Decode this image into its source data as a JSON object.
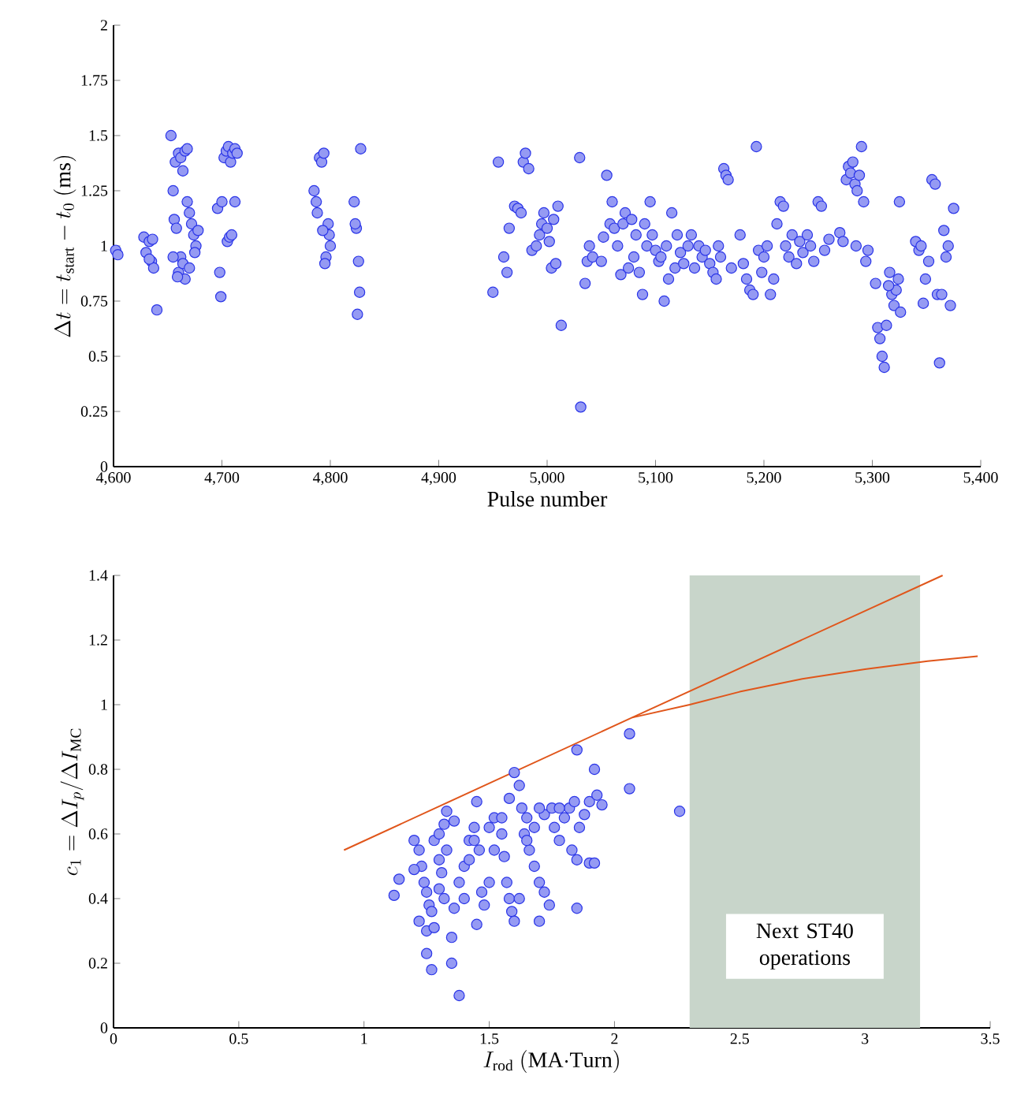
{
  "chart_data": [
    {
      "type": "scatter",
      "xlabel": "Pulse number",
      "ylabel": "\\Delta t = t_{\\mathrm{start}} - t_0\\ \\mathrm{(ms)}",
      "grid": false,
      "xlim": [
        4600,
        5400
      ],
      "xticks": [
        {
          "value": 4600,
          "label": "4,600"
        },
        {
          "value": 4700,
          "label": "4,700"
        },
        {
          "value": 4800,
          "label": "4,800"
        },
        {
          "value": 4900,
          "label": "4,900"
        },
        {
          "value": 5000,
          "label": "5,000"
        },
        {
          "value": 5100,
          "label": "5,100"
        },
        {
          "value": 5200,
          "label": "5,200"
        },
        {
          "value": 5300,
          "label": "5,300"
        },
        {
          "value": 5400,
          "label": "5,400"
        }
      ],
      "ylim": [
        0,
        2
      ],
      "yticks": [
        0,
        0.25,
        0.5,
        0.75,
        1,
        1.25,
        1.5,
        1.75,
        2
      ],
      "series": [
        {
          "marker": "circle",
          "color": "#2a35e8",
          "x": [
            4602,
            4604,
            4628,
            4630,
            4633,
            4635,
            4637,
            4640,
            4633,
            4636,
            4653,
            4655,
            4657,
            4660,
            4662,
            4664,
            4666,
            4668,
            4656,
            4658,
            4660,
            4662,
            4664,
            4666,
            4668,
            4670,
            4672,
            4674,
            4676,
            4678,
            4655,
            4659,
            4670,
            4675,
            4696,
            4698,
            4699,
            4700,
            4702,
            4704,
            4706,
            4708,
            4710,
            4712,
            4714,
            4705,
            4707,
            4712,
            4709,
            4785,
            4787,
            4788,
            4790,
            4792,
            4794,
            4796,
            4798,
            4799,
            4800,
            4795,
            4793,
            4822,
            4824,
            4826,
            4827,
            4825,
            4828,
            4823,
            4950,
            4955,
            4960,
            4963,
            4965,
            4970,
            4973,
            4976,
            4978,
            4980,
            4983,
            4986,
            4990,
            4993,
            4995,
            4997,
            5000,
            5002,
            5004,
            5006,
            5008,
            5010,
            5013,
            5030,
            5031,
            5035,
            5037,
            5039,
            5042,
            5050,
            5052,
            5055,
            5058,
            5060,
            5062,
            5065,
            5068,
            5070,
            5072,
            5075,
            5078,
            5080,
            5082,
            5085,
            5088,
            5090,
            5092,
            5095,
            5097,
            5100,
            5103,
            5105,
            5108,
            5110,
            5112,
            5115,
            5118,
            5120,
            5123,
            5126,
            5130,
            5133,
            5136,
            5140,
            5143,
            5146,
            5150,
            5153,
            5156,
            5158,
            5160,
            5163,
            5165,
            5167,
            5170,
            5178,
            5181,
            5184,
            5187,
            5190,
            5193,
            5195,
            5198,
            5200,
            5203,
            5206,
            5209,
            5212,
            5215,
            5218,
            5220,
            5223,
            5226,
            5230,
            5233,
            5236,
            5240,
            5243,
            5246,
            5250,
            5253,
            5256,
            5260,
            5270,
            5273,
            5276,
            5278,
            5280,
            5282,
            5284,
            5286,
            5288,
            5290,
            5292,
            5294,
            5296,
            5285,
            5303,
            5305,
            5307,
            5309,
            5311,
            5313,
            5316,
            5318,
            5320,
            5322,
            5324,
            5326,
            5315,
            5325,
            5340,
            5343,
            5345,
            5347,
            5349,
            5352,
            5355,
            5358,
            5360,
            5362,
            5364,
            5366,
            5368,
            5370,
            5372,
            5375
          ],
          "values": [
            0.98,
            0.96,
            1.04,
            0.97,
            1.02,
            0.93,
            0.9,
            0.71,
            0.94,
            1.03,
            1.5,
            1.25,
            1.38,
            1.42,
            1.4,
            1.34,
            1.43,
            1.44,
            1.12,
            1.08,
            0.88,
            0.95,
            0.92,
            0.85,
            1.2,
            1.15,
            1.1,
            1.05,
            1.0,
            1.07,
            0.95,
            0.86,
            0.9,
            0.97,
            1.17,
            0.88,
            0.77,
            1.2,
            1.4,
            1.43,
            1.45,
            1.38,
            1.42,
            1.44,
            1.42,
            1.02,
            1.04,
            1.2,
            1.05,
            1.25,
            1.2,
            1.15,
            1.4,
            1.38,
            1.42,
            0.95,
            1.1,
            1.05,
            1.0,
            0.92,
            1.07,
            1.2,
            1.08,
            0.93,
            0.79,
            0.69,
            1.44,
            1.1,
            0.79,
            1.38,
            0.95,
            0.88,
            1.08,
            1.18,
            1.17,
            1.15,
            1.38,
            1.42,
            1.35,
            0.98,
            1.0,
            1.05,
            1.1,
            1.15,
            1.08,
            1.02,
            0.9,
            1.12,
            0.92,
            1.18,
            0.64,
            1.4,
            0.27,
            0.83,
            0.93,
            1.0,
            0.95,
            0.93,
            1.04,
            1.32,
            1.1,
            1.2,
            1.08,
            1.0,
            0.87,
            1.1,
            1.15,
            0.9,
            1.12,
            0.95,
            1.05,
            0.88,
            0.78,
            1.1,
            1.0,
            1.2,
            1.05,
            0.98,
            0.93,
            0.95,
            0.75,
            1.0,
            0.85,
            1.15,
            0.9,
            1.05,
            0.97,
            0.92,
            1.0,
            1.05,
            0.9,
            1.0,
            0.95,
            0.98,
            0.92,
            0.88,
            0.85,
            1.0,
            0.95,
            1.35,
            1.32,
            1.3,
            0.9,
            1.05,
            0.92,
            0.85,
            0.8,
            0.78,
            1.45,
            0.98,
            0.88,
            0.95,
            1.0,
            0.78,
            0.85,
            1.1,
            1.2,
            1.18,
            1.0,
            0.95,
            1.05,
            0.92,
            1.02,
            0.97,
            1.05,
            1.0,
            0.93,
            1.2,
            1.18,
            0.98,
            1.03,
            1.06,
            1.02,
            1.3,
            1.36,
            1.33,
            1.38,
            1.28,
            1.25,
            1.32,
            1.45,
            1.2,
            0.93,
            0.98,
            1.0,
            0.83,
            0.63,
            0.58,
            0.5,
            0.45,
            0.64,
            0.88,
            0.78,
            0.73,
            0.8,
            0.85,
            0.7,
            0.82,
            1.2,
            1.02,
            0.98,
            1.0,
            0.74,
            0.85,
            0.93,
            1.3,
            1.28,
            0.78,
            0.47,
            0.78,
            1.07,
            0.95,
            1.0,
            0.73,
            1.17
          ]
        }
      ]
    },
    {
      "type": "scatter",
      "xlabel": "I_{\\mathrm{rod}}\\ \\mathrm{(MA{\\cdot}Turn)}",
      "ylabel": "c_1 = \\Delta I_p / \\Delta I_{\\mathrm{MC}}",
      "grid": false,
      "xlim": [
        0,
        3.5
      ],
      "xticks": [
        0,
        0.5,
        1,
        1.5,
        2,
        2.5,
        3,
        3.5
      ],
      "ylim": [
        0,
        1.4
      ],
      "yticks": [
        0,
        0.2,
        0.4,
        0.6,
        0.8,
        1,
        1.2,
        1.4
      ],
      "bands": [
        {
          "axis": "x",
          "from": 2.3,
          "to": 3.22,
          "label": "Next ST40 operations",
          "color": "#c8d5ca"
        }
      ],
      "series": [
        {
          "type": "line",
          "marker": "none",
          "color": "#e0561b",
          "x": [
            0.92,
            2.07,
            3.31
          ],
          "values": [
            0.55,
            0.96,
            1.4
          ]
        },
        {
          "type": "line",
          "marker": "none",
          "color": "#e0561b",
          "x": [
            2.07,
            2.3,
            2.5,
            2.75,
            3.0,
            3.25,
            3.45
          ],
          "values": [
            0.96,
            1.0,
            1.04,
            1.08,
            1.11,
            1.135,
            1.15
          ]
        },
        {
          "marker": "circle",
          "color": "#2a35e8",
          "x": [
            1.12,
            1.14,
            1.2,
            1.22,
            1.23,
            1.24,
            1.25,
            1.26,
            1.27,
            1.22,
            1.25,
            1.28,
            1.3,
            1.32,
            1.33,
            1.3,
            1.31,
            1.3,
            1.32,
            1.28,
            1.25,
            1.27,
            1.35,
            1.38,
            1.35,
            1.36,
            1.38,
            1.4,
            1.42,
            1.44,
            1.45,
            1.46,
            1.47,
            1.48,
            1.5,
            1.52,
            1.55,
            1.56,
            1.57,
            1.58,
            1.59,
            1.6,
            1.58,
            1.6,
            1.62,
            1.63,
            1.65,
            1.64,
            1.66,
            1.68,
            1.7,
            1.72,
            1.74,
            1.72,
            1.75,
            1.76,
            1.78,
            1.8,
            1.82,
            1.84,
            1.83,
            1.85,
            1.85,
            1.86,
            1.88,
            1.9,
            1.9,
            1.92,
            1.93,
            1.85,
            1.92,
            2.06,
            2.06,
            2.26,
            1.7,
            1.68,
            1.55,
            1.42,
            1.2,
            1.33,
            1.4,
            1.5,
            1.65,
            1.78,
            1.95,
            1.7,
            1.62,
            1.45,
            1.36,
            1.44,
            1.52
          ],
          "values": [
            0.41,
            0.46,
            0.58,
            0.55,
            0.5,
            0.45,
            0.42,
            0.38,
            0.36,
            0.33,
            0.3,
            0.58,
            0.6,
            0.63,
            0.67,
            0.52,
            0.48,
            0.43,
            0.4,
            0.31,
            0.23,
            0.18,
            0.2,
            0.1,
            0.28,
            0.37,
            0.45,
            0.5,
            0.58,
            0.62,
            0.7,
            0.55,
            0.42,
            0.38,
            0.62,
            0.65,
            0.6,
            0.53,
            0.45,
            0.4,
            0.36,
            0.33,
            0.71,
            0.79,
            0.75,
            0.68,
            0.65,
            0.6,
            0.55,
            0.5,
            0.45,
            0.42,
            0.38,
            0.66,
            0.68,
            0.62,
            0.58,
            0.65,
            0.68,
            0.7,
            0.55,
            0.52,
            0.37,
            0.62,
            0.66,
            0.7,
            0.51,
            0.51,
            0.72,
            0.86,
            0.8,
            0.91,
            0.74,
            0.67,
            0.68,
            0.62,
            0.65,
            0.52,
            0.49,
            0.55,
            0.4,
            0.45,
            0.58,
            0.68,
            0.69,
            0.33,
            0.4,
            0.32,
            0.64,
            0.58,
            0.55
          ]
        }
      ]
    }
  ]
}
